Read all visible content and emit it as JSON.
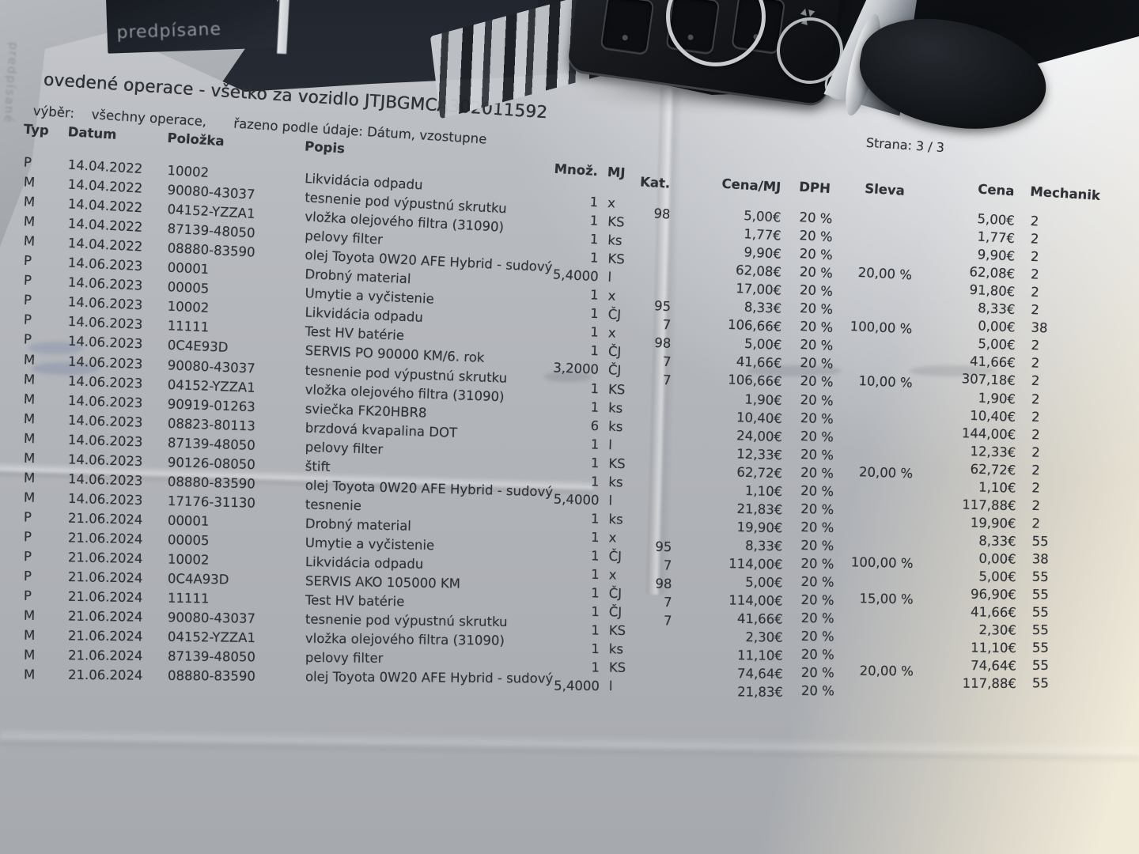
{
  "photo": {
    "book_label": "predpísane",
    "side_ghost_text": "predpísané",
    "colors": {
      "background_dark": "#15181d",
      "paper_grey": "#b2b5ba",
      "paper_sunlit": "#f0ead9",
      "ink": "#2e3136"
    }
  },
  "document": {
    "title": "ovedené operace - všetko za vozidlo JTJBGMCA302011592",
    "page_label": "Strana: 3 / 3",
    "filter": {
      "label": "výběr:",
      "value": "všechny operace,",
      "sort": "řazeno podle údaje: Dátum, vzostupne"
    },
    "columns": {
      "typ": "Typ",
      "datum": "Datum",
      "polozka": "Položka",
      "popis": "Popis",
      "mnoz": "Množ.",
      "mj": "MJ",
      "kat": "Kat.",
      "cena_mj": "Cena/MJ",
      "dph": "DPH",
      "sleva": "Sleva",
      "cena": "Cena",
      "mechanik": "Mechanik"
    },
    "rows": [
      {
        "typ": "P",
        "datum": "14.04.2022",
        "polozka": "10002",
        "popis": "Likvidácia odpadu",
        "mnoz": "1",
        "mj": "x",
        "kat": "98",
        "cena_mj": "5,00€",
        "dph": "20 %",
        "sleva": "",
        "cena": "5,00€",
        "mechanik": "2"
      },
      {
        "typ": "M",
        "datum": "14.04.2022",
        "polozka": "90080-43037",
        "popis": "tesnenie pod výpustnú skrutku",
        "mnoz": "1",
        "mj": "KS",
        "kat": "",
        "cena_mj": "1,77€",
        "dph": "20 %",
        "sleva": "",
        "cena": "1,77€",
        "mechanik": "2"
      },
      {
        "typ": "M",
        "datum": "14.04.2022",
        "polozka": "04152-YZZA1",
        "popis": "vložka olejového filtra (31090)",
        "mnoz": "1",
        "mj": "ks",
        "kat": "",
        "cena_mj": "9,90€",
        "dph": "20 %",
        "sleva": "",
        "cena": "9,90€",
        "mechanik": "2"
      },
      {
        "typ": "M",
        "datum": "14.04.2022",
        "polozka": "87139-48050",
        "popis": "pelovy filter",
        "mnoz": "1",
        "mj": "KS",
        "kat": "",
        "cena_mj": "62,08€",
        "dph": "20 %",
        "sleva": "20,00 %",
        "cena": "62,08€",
        "mechanik": "2"
      },
      {
        "typ": "M",
        "datum": "14.04.2022",
        "polozka": "08880-83590",
        "popis": "olej Toyota 0W20 AFE Hybrid - sudový",
        "mnoz": "5,4000",
        "mj": "l",
        "kat": "",
        "cena_mj": "17,00€",
        "dph": "20 %",
        "sleva": "",
        "cena": "91,80€",
        "mechanik": "2"
      },
      {
        "typ": "P",
        "datum": "14.06.2023",
        "polozka": "00001",
        "popis": "Drobný material",
        "mnoz": "1",
        "mj": "x",
        "kat": "95",
        "cena_mj": "8,33€",
        "dph": "20 %",
        "sleva": "",
        "cena": "8,33€",
        "mechanik": "2"
      },
      {
        "typ": "P",
        "datum": "14.06.2023",
        "polozka": "00005",
        "popis": "Umytie a vyčistenie",
        "mnoz": "1",
        "mj": "ČJ",
        "kat": "7",
        "cena_mj": "106,66€",
        "dph": "20 %",
        "sleva": "100,00 %",
        "cena": "0,00€",
        "mechanik": "38"
      },
      {
        "typ": "P",
        "datum": "14.06.2023",
        "polozka": "10002",
        "popis": "Likvidácia odpadu",
        "mnoz": "1",
        "mj": "x",
        "kat": "98",
        "cena_mj": "5,00€",
        "dph": "20 %",
        "sleva": "",
        "cena": "5,00€",
        "mechanik": "2"
      },
      {
        "typ": "P",
        "datum": "14.06.2023",
        "polozka": "11111",
        "popis": "Test HV batérie",
        "mnoz": "1",
        "mj": "ČJ",
        "kat": "7",
        "cena_mj": "41,66€",
        "dph": "20 %",
        "sleva": "",
        "cena": "41,66€",
        "mechanik": "2"
      },
      {
        "typ": "P",
        "datum": "14.06.2023",
        "polozka": "0C4E93D",
        "popis": "SERVIS PO 90000 KM/6. rok",
        "mnoz": "3,2000",
        "mj": "ČJ",
        "kat": "7",
        "cena_mj": "106,66€",
        "dph": "20 %",
        "sleva": "10,00 %",
        "cena": "307,18€",
        "mechanik": "2"
      },
      {
        "typ": "M",
        "datum": "14.06.2023",
        "polozka": "90080-43037",
        "popis": "tesnenie pod výpustnú skrutku",
        "mnoz": "1",
        "mj": "KS",
        "kat": "",
        "cena_mj": "1,90€",
        "dph": "20 %",
        "sleva": "",
        "cena": "1,90€",
        "mechanik": "2"
      },
      {
        "typ": "M",
        "datum": "14.06.2023",
        "polozka": "04152-YZZA1",
        "popis": "vložka olejového filtra (31090)",
        "mnoz": "1",
        "mj": "ks",
        "kat": "",
        "cena_mj": "10,40€",
        "dph": "20 %",
        "sleva": "",
        "cena": "10,40€",
        "mechanik": "2"
      },
      {
        "typ": "M",
        "datum": "14.06.2023",
        "polozka": "90919-01263",
        "popis": "sviečka FK20HBR8",
        "mnoz": "6",
        "mj": "ks",
        "kat": "",
        "cena_mj": "24,00€",
        "dph": "20 %",
        "sleva": "",
        "cena": "144,00€",
        "mechanik": "2"
      },
      {
        "typ": "M",
        "datum": "14.06.2023",
        "polozka": "08823-80113",
        "popis": "brzdová kvapalina DOT",
        "mnoz": "1",
        "mj": "l",
        "kat": "",
        "cena_mj": "12,33€",
        "dph": "20 %",
        "sleva": "",
        "cena": "12,33€",
        "mechanik": "2"
      },
      {
        "typ": "M",
        "datum": "14.06.2023",
        "polozka": "87139-48050",
        "popis": "pelovy filter",
        "mnoz": "1",
        "mj": "KS",
        "kat": "",
        "cena_mj": "62,72€",
        "dph": "20 %",
        "sleva": "20,00 %",
        "cena": "62,72€",
        "mechanik": "2"
      },
      {
        "typ": "M",
        "datum": "14.06.2023",
        "polozka": "90126-08050",
        "popis": "štift",
        "mnoz": "1",
        "mj": "ks",
        "kat": "",
        "cena_mj": "1,10€",
        "dph": "20 %",
        "sleva": "",
        "cena": "1,10€",
        "mechanik": "2"
      },
      {
        "typ": "M",
        "datum": "14.06.2023",
        "polozka": "08880-83590",
        "popis": "olej Toyota 0W20 AFE Hybrid - sudový",
        "mnoz": "5,4000",
        "mj": "l",
        "kat": "",
        "cena_mj": "21,83€",
        "dph": "20 %",
        "sleva": "",
        "cena": "117,88€",
        "mechanik": "2"
      },
      {
        "typ": "M",
        "datum": "14.06.2023",
        "polozka": "17176-31130",
        "popis": "tesnenie",
        "mnoz": "1",
        "mj": "ks",
        "kat": "",
        "cena_mj": "19,90€",
        "dph": "20 %",
        "sleva": "",
        "cena": "19,90€",
        "mechanik": "2"
      },
      {
        "typ": "P",
        "datum": "21.06.2024",
        "polozka": "00001",
        "popis": "Drobný material",
        "mnoz": "1",
        "mj": "x",
        "kat": "95",
        "cena_mj": "8,33€",
        "dph": "20 %",
        "sleva": "",
        "cena": "8,33€",
        "mechanik": "55"
      },
      {
        "typ": "P",
        "datum": "21.06.2024",
        "polozka": "00005",
        "popis": "Umytie a vyčistenie",
        "mnoz": "1",
        "mj": "ČJ",
        "kat": "7",
        "cena_mj": "114,00€",
        "dph": "20 %",
        "sleva": "100,00 %",
        "cena": "0,00€",
        "mechanik": "38"
      },
      {
        "typ": "P",
        "datum": "21.06.2024",
        "polozka": "10002",
        "popis": "Likvidácia odpadu",
        "mnoz": "1",
        "mj": "x",
        "kat": "98",
        "cena_mj": "5,00€",
        "dph": "20 %",
        "sleva": "",
        "cena": "5,00€",
        "mechanik": "55"
      },
      {
        "typ": "P",
        "datum": "21.06.2024",
        "polozka": "0C4A93D",
        "popis": "SERVIS AKO 105000 KM",
        "mnoz": "1",
        "mj": "ČJ",
        "kat": "7",
        "cena_mj": "114,00€",
        "dph": "20 %",
        "sleva": "15,00 %",
        "cena": "96,90€",
        "mechanik": "55"
      },
      {
        "typ": "P",
        "datum": "21.06.2024",
        "polozka": "11111",
        "popis": "Test HV batérie",
        "mnoz": "1",
        "mj": "ČJ",
        "kat": "7",
        "cena_mj": "41,66€",
        "dph": "20 %",
        "sleva": "",
        "cena": "41,66€",
        "mechanik": "55"
      },
      {
        "typ": "M",
        "datum": "21.06.2024",
        "polozka": "90080-43037",
        "popis": "tesnenie pod výpustnú skrutku",
        "mnoz": "1",
        "mj": "KS",
        "kat": "",
        "cena_mj": "2,30€",
        "dph": "20 %",
        "sleva": "",
        "cena": "2,30€",
        "mechanik": "55"
      },
      {
        "typ": "M",
        "datum": "21.06.2024",
        "polozka": "04152-YZZA1",
        "popis": "vložka olejového filtra (31090)",
        "mnoz": "1",
        "mj": "ks",
        "kat": "",
        "cena_mj": "11,10€",
        "dph": "20 %",
        "sleva": "",
        "cena": "11,10€",
        "mechanik": "55"
      },
      {
        "typ": "M",
        "datum": "21.06.2024",
        "polozka": "87139-48050",
        "popis": "pelovy filter",
        "mnoz": "1",
        "mj": "KS",
        "kat": "",
        "cena_mj": "74,64€",
        "dph": "20 %",
        "sleva": "20,00 %",
        "cena": "74,64€",
        "mechanik": "55"
      },
      {
        "typ": "M",
        "datum": "21.06.2024",
        "polozka": "08880-83590",
        "popis": "olej Toyota 0W20 AFE Hybrid - sudový",
        "mnoz": "5,4000",
        "mj": "l",
        "kat": "",
        "cena_mj": "21,83€",
        "dph": "20 %",
        "sleva": "",
        "cena": "117,88€",
        "mechanik": "55"
      }
    ]
  }
}
